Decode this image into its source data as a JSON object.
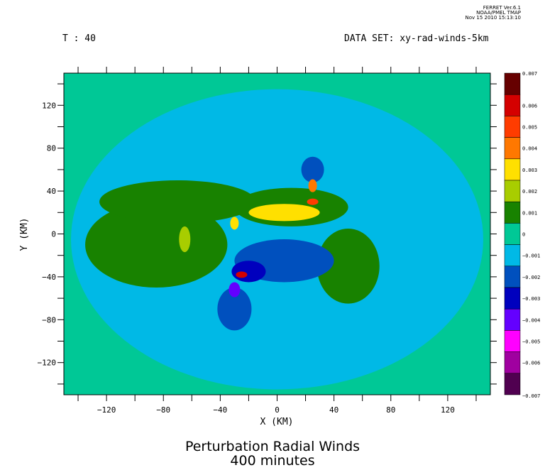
{
  "stamp": {
    "line1": "FERRET Ver.6.1",
    "line2": "NOAA/PMEL TMAP",
    "line3": "Nov 15 2010 15:13:10"
  },
  "header": {
    "time_label": "T : 40",
    "dataset_label": "DATA SET: xy-rad-winds-5km"
  },
  "chart_data": {
    "type": "heatmap",
    "title": "Perturbation Radial Winds",
    "subtitle": "400 minutes",
    "xlabel": "X (KM)",
    "ylabel": "Y (KM)",
    "xlim": [
      -150,
      150
    ],
    "ylim": [
      -150,
      150
    ],
    "xticks": [
      -120,
      -80,
      -40,
      0,
      40,
      80,
      120
    ],
    "yticks": [
      120,
      80,
      40,
      0,
      -40,
      -80,
      -120
    ],
    "background_color": "#00c896",
    "colorbar": {
      "levels": [
        "0.007",
        "0.006",
        "0.005",
        "0.004",
        "0.003",
        "0.002",
        "0.001",
        "0",
        "-0.001",
        "-0.002",
        "-0.003",
        "-0.004",
        "-0.005",
        "-0.006",
        "-0.007"
      ],
      "colors": [
        "#660000",
        "#d40000",
        "#ff3c00",
        "#ff7800",
        "#ffe000",
        "#a8cd00",
        "#188200",
        "#00c896",
        "#00b9e6",
        "#0050be",
        "#0000be",
        "#6400ff",
        "#ff00ff",
        "#a000a0",
        "#500050"
      ]
    },
    "fields": [
      {
        "label": "outer ring",
        "x_center": 0,
        "y_center": -5,
        "x_radius": 145,
        "y_radius": 140,
        "value": -0.001
      },
      {
        "label": "west positive region",
        "x_center": -85,
        "y_center": -10,
        "x_radius": 50,
        "y_radius": 40,
        "value": 0.001
      },
      {
        "label": "north-west band",
        "x_center": -70,
        "y_center": 30,
        "x_radius": 55,
        "y_radius": 20,
        "value": 0.001
      },
      {
        "label": "central positive band",
        "x_center": 10,
        "y_center": 25,
        "x_radius": 40,
        "y_radius": 18,
        "value": 0.001
      },
      {
        "label": "central yellow band",
        "x_center": 5,
        "y_center": 20,
        "x_radius": 25,
        "y_radius": 8,
        "value": 0.003
      },
      {
        "label": "east positive band",
        "x_center": 50,
        "y_center": -30,
        "x_radius": 22,
        "y_radius": 35,
        "value": 0.001
      },
      {
        "label": "central negative",
        "x_center": 5,
        "y_center": -25,
        "x_radius": 35,
        "y_radius": 20,
        "value": -0.002
      },
      {
        "label": "south negative",
        "x_center": -30,
        "y_center": -70,
        "x_radius": 12,
        "y_radius": 20,
        "value": -0.002
      },
      {
        "label": "north negative",
        "x_center": 25,
        "y_center": 60,
        "x_radius": 8,
        "y_radius": 12,
        "value": -0.002
      },
      {
        "label": "inner negative",
        "x_center": -20,
        "y_center": -35,
        "x_radius": 12,
        "y_radius": 10,
        "value": -0.003
      },
      {
        "label": "south-west strong neg",
        "x_center": -30,
        "y_center": -52,
        "x_radius": 4,
        "y_radius": 7,
        "value": -0.004
      },
      {
        "label": "hot spot 1",
        "x_center": -25,
        "y_center": -38,
        "x_radius": 4,
        "y_radius": 3,
        "value": 0.006
      },
      {
        "label": "hot spot 2",
        "x_center": 25,
        "y_center": 30,
        "x_radius": 4,
        "y_radius": 3,
        "value": 0.005
      },
      {
        "label": "hot spot 3",
        "x_center": 25,
        "y_center": 45,
        "x_radius": 3,
        "y_radius": 6,
        "value": 0.004
      },
      {
        "label": "hot spot 4",
        "x_center": -30,
        "y_center": 10,
        "x_radius": 3,
        "y_radius": 6,
        "value": 0.003
      },
      {
        "label": "hot spot 5",
        "x_center": -65,
        "y_center": -5,
        "x_radius": 4,
        "y_radius": 12,
        "value": 0.002
      }
    ]
  }
}
